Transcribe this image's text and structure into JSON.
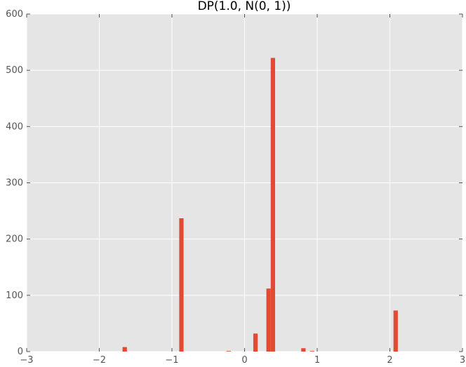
{
  "chart_data": {
    "type": "bar",
    "title": "DP(1.0, N(0, 1))",
    "xlabel": "",
    "ylabel": "",
    "xlim": [
      -3,
      3
    ],
    "ylim": [
      0,
      600
    ],
    "xticks": [
      "−3",
      "−2",
      "−1",
      "0",
      "1",
      "2",
      "3"
    ],
    "xtick_values": [
      -3,
      -2,
      -1,
      0,
      1,
      2,
      3
    ],
    "yticks": [
      "0",
      "100",
      "200",
      "300",
      "400",
      "500",
      "600"
    ],
    "ytick_values": [
      0,
      100,
      200,
      300,
      400,
      500,
      600
    ],
    "bar_width": 0.06,
    "grid": true,
    "background": "#e5e5e5",
    "bar_color": "#e24a33",
    "bars": [
      {
        "x": -1.65,
        "value": 8
      },
      {
        "x": -0.87,
        "value": 237
      },
      {
        "x": -0.22,
        "value": 1
      },
      {
        "x": 0.15,
        "value": 32
      },
      {
        "x": 0.33,
        "value": 112
      },
      {
        "x": 0.39,
        "value": 522
      },
      {
        "x": 0.81,
        "value": 6
      },
      {
        "x": 0.93,
        "value": 1
      },
      {
        "x": 2.08,
        "value": 73
      }
    ]
  }
}
